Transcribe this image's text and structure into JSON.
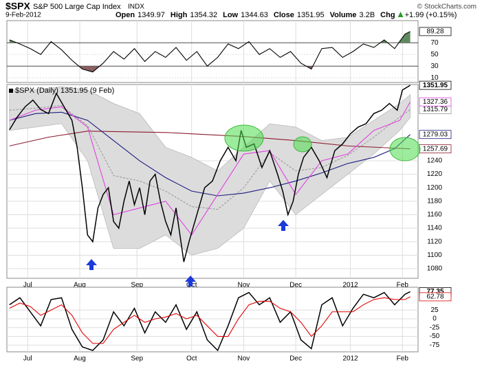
{
  "header": {
    "symbol": "$SPX",
    "name": "S&P 500 Large Cap Index",
    "exchange": "INDX",
    "date": "9-Feb-2012",
    "quote": [
      {
        "label": "Open",
        "value": "1349.97"
      },
      {
        "label": "High",
        "value": "1354.32"
      },
      {
        "label": "Low",
        "value": "1344.63"
      },
      {
        "label": "Close",
        "value": "1351.95"
      },
      {
        "label": "Volume",
        "value": "3.2B"
      },
      {
        "label": "Chg",
        "value": "+1.99 (+0.15%)"
      }
    ],
    "credit": "© StockCharts.com"
  },
  "chart_data": [
    {
      "type": "line",
      "xlim": [
        -1,
        157
      ],
      "ylim": [
        2,
        108
      ],
      "yticks": [
        10,
        30,
        50,
        70
      ],
      "upper_fill": "#5f8a5f",
      "lower_fill": "#8a6262",
      "series": [
        {
          "color": "#000000",
          "tag": true,
          "x": [
            0,
            4,
            8,
            12,
            16,
            20,
            24,
            28,
            32,
            36,
            40,
            44,
            48,
            52,
            56,
            60,
            64,
            68,
            72,
            76,
            80,
            84,
            88,
            92,
            96,
            100,
            104,
            108,
            112,
            116,
            120,
            124,
            128,
            132,
            136,
            140,
            144,
            148,
            152,
            154
          ],
          "values": [
            75,
            68,
            60,
            50,
            72,
            58,
            40,
            25,
            20,
            35,
            55,
            42,
            60,
            38,
            55,
            45,
            62,
            40,
            55,
            30,
            45,
            68,
            60,
            72,
            50,
            60,
            45,
            55,
            35,
            25,
            60,
            62,
            45,
            55,
            68,
            62,
            75,
            60,
            85,
            89.28
          ]
        }
      ]
    },
    {
      "type": "line",
      "legend": "$SPX (Daily) 1351.95 (9 Feb)",
      "xlim": [
        -1,
        157
      ],
      "ylim": [
        1065.7,
        1353.1
      ],
      "grid": true,
      "yticks": [
        1080,
        1100,
        1120,
        1140,
        1160,
        1180,
        1200,
        1220,
        1240
      ],
      "xticks": [
        {
          "value": 7,
          "label": "Jul"
        },
        {
          "value": 27,
          "label": "Aug"
        },
        {
          "value": 49,
          "label": "Sep"
        },
        {
          "value": 70,
          "label": "Oct"
        },
        {
          "value": 90,
          "label": "Nov"
        },
        {
          "value": 110,
          "label": "Dec"
        },
        {
          "value": 131,
          "label": "2012"
        },
        {
          "value": 151,
          "label": "Feb"
        }
      ],
      "band": {
        "color": "#dcdcdc",
        "x": [
          0,
          10,
          20,
          30,
          40,
          50,
          60,
          70,
          80,
          90,
          100,
          110,
          120,
          130,
          140,
          150,
          154
        ],
        "upper": [
          1345,
          1345,
          1350,
          1345,
          1325,
          1310,
          1260,
          1245,
          1225,
          1260,
          1295,
          1290,
          1270,
          1275,
          1300,
          1325,
          1338
        ],
        "lower": [
          1285,
          1290,
          1295,
          1240,
          1110,
          1110,
          1130,
          1100,
          1110,
          1140,
          1210,
          1160,
          1190,
          1220,
          1250,
          1285,
          1304.23
        ]
      },
      "series": [
        {
          "color": "#999999",
          "dash": true,
          "tag": true,
          "x": [
            0,
            10,
            20,
            30,
            40,
            50,
            60,
            70,
            80,
            90,
            100,
            110,
            120,
            130,
            140,
            150,
            154
          ],
          "values": [
            1315,
            1318,
            1322,
            1292,
            1218,
            1210,
            1195,
            1172,
            1168,
            1200,
            1252,
            1225,
            1230,
            1248,
            1275,
            1305,
            1315.79
          ]
        },
        {
          "color": "#8b1a2e",
          "tag": true,
          "x": [
            0,
            15,
            30,
            60,
            90,
            110,
            130,
            154
          ],
          "values": [
            1262,
            1275,
            1284,
            1282,
            1276,
            1270,
            1262,
            1257.69
          ]
        },
        {
          "color": "#1a1a80",
          "tag": true,
          "x": [
            0,
            10,
            20,
            30,
            40,
            50,
            60,
            70,
            80,
            90,
            100,
            110,
            120,
            130,
            140,
            148,
            154
          ],
          "values": [
            1300,
            1310,
            1312,
            1300,
            1270,
            1240,
            1215,
            1195,
            1188,
            1192,
            1200,
            1210,
            1222,
            1236,
            1245,
            1258,
            1279.03
          ]
        },
        {
          "color": "#e040e0",
          "tag": true,
          "x": [
            0,
            10,
            20,
            30,
            40,
            50,
            60,
            70,
            80,
            90,
            100,
            110,
            120,
            130,
            140,
            150,
            154
          ],
          "values": [
            1300,
            1315,
            1320,
            1290,
            1160,
            1170,
            1180,
            1130,
            1190,
            1250,
            1255,
            1190,
            1240,
            1250,
            1285,
            1300,
            1327.36
          ]
        },
        {
          "color": "#000000",
          "tag": true,
          "bold": true,
          "x": [
            0,
            3,
            6,
            9,
            12,
            15,
            18,
            21,
            24,
            26,
            28,
            30,
            32,
            34,
            36,
            38,
            40,
            42,
            44,
            46,
            48,
            50,
            52,
            54,
            56,
            58,
            60,
            62,
            64,
            67,
            69,
            72,
            75,
            78,
            81,
            84,
            87,
            89,
            91,
            94,
            97,
            100,
            103,
            105,
            107,
            109,
            111,
            113,
            116,
            119,
            122,
            125,
            128,
            131,
            134,
            137,
            140,
            143,
            146,
            149,
            151,
            154
          ],
          "values": [
            1286,
            1305,
            1320,
            1330,
            1316,
            1310,
            1340,
            1320,
            1300,
            1260,
            1200,
            1130,
            1120,
            1170,
            1190,
            1200,
            1150,
            1140,
            1180,
            1210,
            1175,
            1200,
            1160,
            1210,
            1220,
            1180,
            1150,
            1130,
            1170,
            1090,
            1120,
            1160,
            1200,
            1210,
            1240,
            1260,
            1240,
            1285,
            1260,
            1265,
            1230,
            1255,
            1220,
            1195,
            1160,
            1180,
            1220,
            1245,
            1260,
            1240,
            1215,
            1255,
            1265,
            1280,
            1290,
            1295,
            1310,
            1315,
            1325,
            1315,
            1345,
            1351.95
          ]
        }
      ]
    },
    {
      "type": "line",
      "xlim": [
        -1,
        157
      ],
      "ylim": [
        -94,
        90
      ],
      "grid": true,
      "yticks": [
        -75,
        -50,
        -25,
        0,
        25
      ],
      "xticks": [
        {
          "value": 7,
          "label": "Jul"
        },
        {
          "value": 27,
          "label": "Aug"
        },
        {
          "value": 49,
          "label": "Sep"
        },
        {
          "value": 70,
          "label": "Oct"
        },
        {
          "value": 90,
          "label": "Nov"
        },
        {
          "value": 110,
          "label": "Dec"
        },
        {
          "value": 131,
          "label": "2012"
        },
        {
          "value": 151,
          "label": "Feb"
        }
      ],
      "series": [
        {
          "color": "#000000",
          "tag": true,
          "bold": true,
          "x": [
            0,
            4,
            8,
            12,
            16,
            20,
            24,
            28,
            32,
            36,
            40,
            44,
            48,
            52,
            56,
            60,
            64,
            68,
            72,
            76,
            80,
            84,
            88,
            92,
            96,
            100,
            104,
            108,
            112,
            116,
            120,
            124,
            128,
            132,
            136,
            140,
            144,
            148,
            152,
            154
          ],
          "values": [
            40,
            60,
            20,
            -20,
            55,
            60,
            -30,
            -80,
            -90,
            -60,
            20,
            -20,
            30,
            -40,
            20,
            -10,
            40,
            -30,
            20,
            -60,
            -90,
            -20,
            60,
            75,
            40,
            60,
            -10,
            20,
            -60,
            -85,
            40,
            60,
            -20,
            30,
            70,
            60,
            75,
            40,
            70,
            77.35
          ]
        },
        {
          "color": "#e00000",
          "tag": true,
          "x": [
            0,
            4,
            8,
            12,
            16,
            20,
            24,
            28,
            32,
            36,
            40,
            44,
            48,
            52,
            56,
            60,
            64,
            68,
            72,
            76,
            80,
            84,
            88,
            92,
            96,
            100,
            104,
            108,
            112,
            116,
            120,
            124,
            128,
            132,
            136,
            140,
            144,
            148,
            152,
            154
          ],
          "values": [
            30,
            45,
            35,
            10,
            25,
            40,
            10,
            -40,
            -70,
            -70,
            -30,
            -10,
            10,
            -10,
            0,
            5,
            15,
            0,
            10,
            -20,
            -50,
            -50,
            0,
            40,
            50,
            50,
            30,
            20,
            -10,
            -50,
            -20,
            20,
            20,
            20,
            40,
            55,
            60,
            55,
            55,
            62.78
          ]
        }
      ]
    }
  ]
}
